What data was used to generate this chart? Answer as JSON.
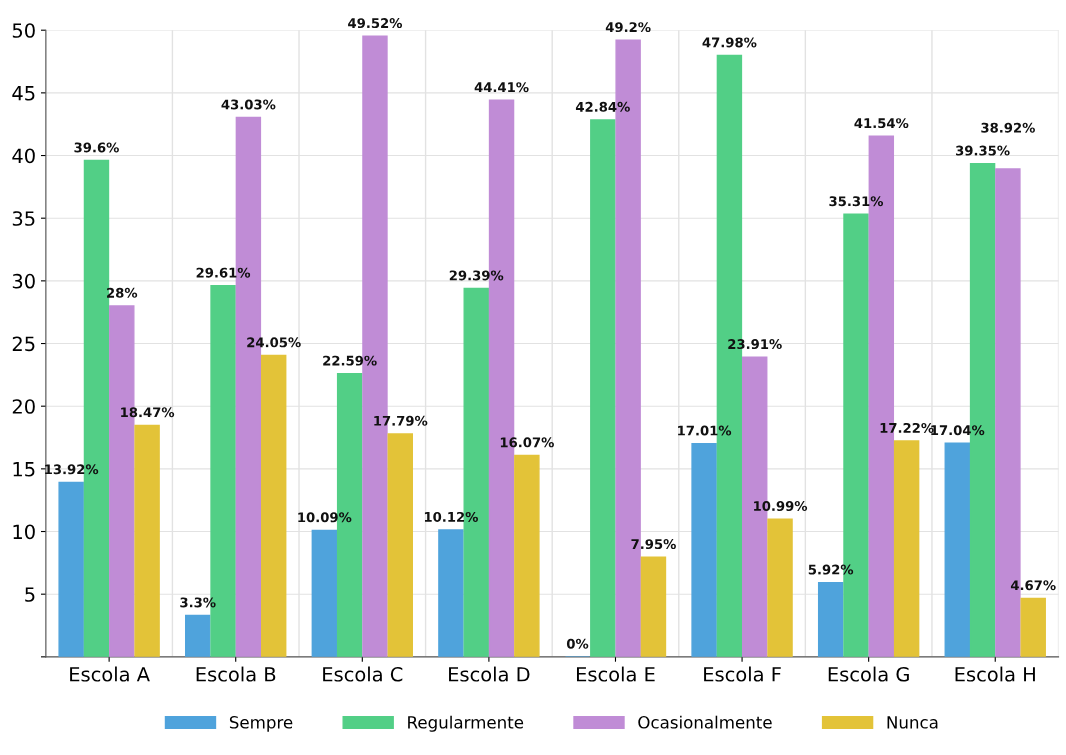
{
  "chart_data": {
    "type": "bar",
    "categories": [
      "Escola A",
      "Escola B",
      "Escola C",
      "Escola D",
      "Escola E",
      "Escola F",
      "Escola G",
      "Escola H"
    ],
    "series": [
      {
        "name": "Sempre",
        "color": "#4fa3dc",
        "values": [
          13.92,
          3.3,
          10.09,
          10.12,
          0,
          17.01,
          5.92,
          17.04
        ],
        "value_labels": [
          "13.92%",
          "3.3%",
          "10.09%",
          "10.12%",
          "0%",
          "17.01%",
          "5.92%",
          "17.04%"
        ]
      },
      {
        "name": "Regularmente",
        "color": "#52cf86",
        "values": [
          39.6,
          29.61,
          22.59,
          29.39,
          42.84,
          47.98,
          35.31,
          39.35
        ],
        "value_labels": [
          "39.6%",
          "29.61%",
          "22.59%",
          "29.39%",
          "42.84%",
          "47.98%",
          "35.31%",
          "39.35%"
        ]
      },
      {
        "name": "Ocasionalmente",
        "color": "#c08cd6",
        "values": [
          28,
          43.03,
          49.52,
          44.41,
          49.2,
          23.91,
          41.54,
          38.92
        ],
        "value_labels": [
          "28%",
          "43.03%",
          "49.52%",
          "44.41%",
          "49.2%",
          "23.91%",
          "41.54%",
          "38.92%"
        ]
      },
      {
        "name": "Nunca",
        "color": "#e3c338",
        "values": [
          18.47,
          24.05,
          17.79,
          16.07,
          7.95,
          10.99,
          17.22,
          4.67
        ],
        "value_labels": [
          "18.47%",
          "24.05%",
          "17.79%",
          "16.07%",
          "7.95%",
          "10.99%",
          "17.22%",
          "4.67%"
        ]
      }
    ],
    "ylim": [
      0,
      50
    ],
    "yticks": [
      {
        "value": 0,
        "label": null
      },
      5,
      10,
      15,
      20,
      25,
      30,
      35,
      40,
      45,
      50
    ],
    "grid": true,
    "legend": "bottom"
  }
}
